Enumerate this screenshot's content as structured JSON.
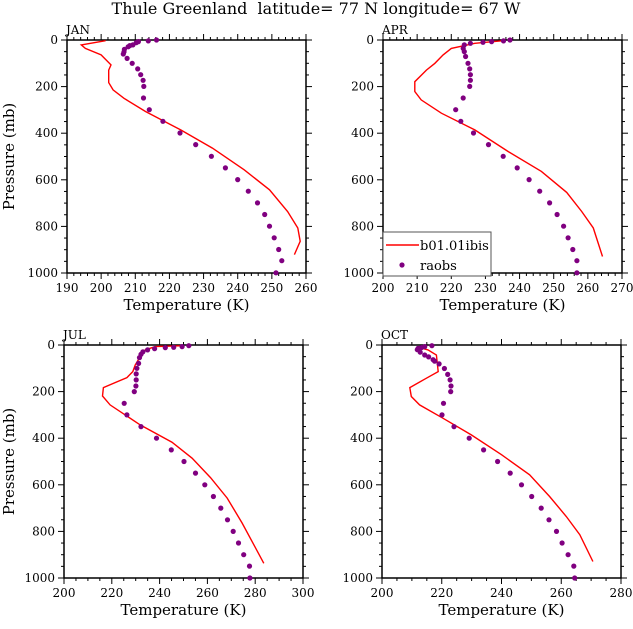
{
  "chart_data": {
    "title": "Thule Greenland  latitude= 77 N longitude= 67 W",
    "legend": {
      "placement": "APR panel, lower-left",
      "entries": [
        {
          "name": "b01.01ibis",
          "style": "line",
          "color": "#ff0000"
        },
        {
          "name": "raobs",
          "style": "dots",
          "color": "#800080"
        }
      ]
    },
    "panels": [
      {
        "type": "line+scatter",
        "label": "JAN",
        "xlabel": "Temperature (K)",
        "ylabel": "Pressure (mb)",
        "xlim": [
          190,
          260
        ],
        "xticks": [
          190,
          200,
          210,
          220,
          230,
          240,
          250,
          260
        ],
        "xminor": 2,
        "ylim": [
          1000,
          0
        ],
        "yticks": [
          0,
          200,
          400,
          600,
          800,
          1000
        ],
        "yminor": 50,
        "model": [
          [
            201.3,
            3
          ],
          [
            194.2,
            21
          ],
          [
            195.4,
            36
          ],
          [
            200.0,
            64
          ],
          [
            202.9,
            107
          ],
          [
            202.2,
            129
          ],
          [
            202.2,
            183
          ],
          [
            203.5,
            214
          ],
          [
            206.7,
            250
          ],
          [
            213.0,
            307
          ],
          [
            223.3,
            386
          ],
          [
            232.6,
            464
          ],
          [
            241.9,
            557
          ],
          [
            249.3,
            643
          ],
          [
            254.6,
            736
          ],
          [
            257.6,
            807
          ],
          [
            258.3,
            864
          ],
          [
            256.6,
            921
          ]
        ],
        "raobs": [
          [
            216.2,
            0
          ],
          [
            213.8,
            4
          ],
          [
            210.9,
            7
          ],
          [
            210.3,
            11
          ],
          [
            209.3,
            21
          ],
          [
            208.4,
            24
          ],
          [
            207.9,
            29
          ],
          [
            206.8,
            40
          ],
          [
            206.7,
            51
          ],
          [
            206.5,
            60
          ],
          [
            207.6,
            79
          ],
          [
            209.1,
            100
          ],
          [
            210.7,
            124
          ],
          [
            211.6,
            149
          ],
          [
            212.3,
            173
          ],
          [
            212.5,
            199
          ],
          [
            212.4,
            249
          ],
          [
            214.1,
            299
          ],
          [
            218.1,
            349
          ],
          [
            223.1,
            399
          ],
          [
            227.7,
            449
          ],
          [
            232.3,
            499
          ],
          [
            236.4,
            549
          ],
          [
            240.0,
            599
          ],
          [
            243.1,
            649
          ],
          [
            245.8,
            699
          ],
          [
            247.9,
            749
          ],
          [
            249.3,
            799
          ],
          [
            250.7,
            849
          ],
          [
            252.0,
            899
          ],
          [
            252.9,
            947
          ],
          [
            251.2,
            999
          ]
        ]
      },
      {
        "type": "line+scatter",
        "label": "APR",
        "xlabel": "Temperature (K)",
        "ylabel": "",
        "xlim": [
          200,
          270
        ],
        "xticks": [
          200,
          210,
          220,
          230,
          240,
          250,
          260,
          270
        ],
        "xminor": 2,
        "ylim": [
          1000,
          0
        ],
        "yticks": [
          0,
          200,
          400,
          600,
          800,
          1000
        ],
        "yminor": 50,
        "model": [
          [
            235.2,
            3
          ],
          [
            226.9,
            14
          ],
          [
            220.0,
            36
          ],
          [
            217.6,
            64
          ],
          [
            215.2,
            100
          ],
          [
            212.7,
            129
          ],
          [
            209.3,
            179
          ],
          [
            209.3,
            221
          ],
          [
            211.2,
            257
          ],
          [
            217.1,
            314
          ],
          [
            226.9,
            386
          ],
          [
            236.7,
            479
          ],
          [
            246.4,
            564
          ],
          [
            253.8,
            654
          ],
          [
            258.2,
            736
          ],
          [
            261.6,
            807
          ],
          [
            263.0,
            871
          ],
          [
            264.3,
            929
          ]
        ],
        "raobs": [
          [
            237.2,
            0
          ],
          [
            235.3,
            4
          ],
          [
            231.8,
            7
          ],
          [
            229.3,
            10
          ],
          [
            225.6,
            14
          ],
          [
            223.8,
            21
          ],
          [
            223.5,
            36
          ],
          [
            223.8,
            50
          ],
          [
            224.2,
            71
          ],
          [
            224.9,
            100
          ],
          [
            225.4,
            124
          ],
          [
            225.6,
            149
          ],
          [
            225.6,
            173
          ],
          [
            225.4,
            199
          ],
          [
            223.5,
            249
          ],
          [
            221.3,
            299
          ],
          [
            222.8,
            349
          ],
          [
            226.5,
            399
          ],
          [
            230.9,
            449
          ],
          [
            235.2,
            499
          ],
          [
            239.3,
            549
          ],
          [
            242.8,
            599
          ],
          [
            245.9,
            649
          ],
          [
            248.8,
            699
          ],
          [
            251.0,
            749
          ],
          [
            252.9,
            799
          ],
          [
            254.2,
            849
          ],
          [
            255.6,
            899
          ],
          [
            256.8,
            947
          ],
          [
            256.8,
            999
          ]
        ]
      },
      {
        "type": "line+scatter",
        "label": "JUL",
        "xlabel": "Temperature (K)",
        "ylabel": "Pressure (mb)",
        "xlim": [
          200,
          300
        ],
        "xticks": [
          200,
          220,
          240,
          260,
          280,
          300
        ],
        "xminor": 5,
        "ylim": [
          1000,
          0
        ],
        "yticks": [
          0,
          200,
          400,
          600,
          800,
          1000
        ],
        "yminor": 50,
        "model": [
          [
            250.1,
            3
          ],
          [
            238.2,
            7
          ],
          [
            234.0,
            21
          ],
          [
            231.9,
            50
          ],
          [
            229.8,
            86
          ],
          [
            228.8,
            114
          ],
          [
            226.3,
            140
          ],
          [
            216.5,
            183
          ],
          [
            216.1,
            219
          ],
          [
            219.3,
            257
          ],
          [
            231.9,
            343
          ],
          [
            245.2,
            417
          ],
          [
            253.6,
            486
          ],
          [
            261.3,
            569
          ],
          [
            268.3,
            657
          ],
          [
            274.5,
            764
          ],
          [
            279.4,
            857
          ],
          [
            283.6,
            937
          ]
        ],
        "raobs": [
          [
            252.2,
            3
          ],
          [
            249.4,
            7
          ],
          [
            245.9,
            10
          ],
          [
            242.4,
            11
          ],
          [
            237.9,
            16
          ],
          [
            235.0,
            21
          ],
          [
            233.0,
            29
          ],
          [
            232.2,
            40
          ],
          [
            231.6,
            54
          ],
          [
            231.2,
            79
          ],
          [
            230.5,
            100
          ],
          [
            230.2,
            124
          ],
          [
            230.2,
            150
          ],
          [
            230.1,
            176
          ],
          [
            229.4,
            200
          ],
          [
            225.2,
            250
          ],
          [
            226.3,
            300
          ],
          [
            232.2,
            350
          ],
          [
            238.7,
            400
          ],
          [
            244.9,
            450
          ],
          [
            250.2,
            500
          ],
          [
            255.0,
            550
          ],
          [
            258.9,
            600
          ],
          [
            262.5,
            650
          ],
          [
            265.6,
            700
          ],
          [
            268.4,
            750
          ],
          [
            270.8,
            800
          ],
          [
            273.0,
            850
          ],
          [
            275.2,
            900
          ],
          [
            277.6,
            949
          ],
          [
            277.8,
            1000
          ]
        ]
      },
      {
        "type": "line+scatter",
        "label": "OCT",
        "xlabel": "Temperature (K)",
        "ylabel": "",
        "xlim": [
          200,
          280
        ],
        "xticks": [
          200,
          220,
          240,
          260,
          280
        ],
        "xminor": 5,
        "ylim": [
          1000,
          0
        ],
        "yticks": [
          0,
          200,
          400,
          600,
          800,
          1000
        ],
        "yminor": 50,
        "model": [
          [
            214.3,
            3
          ],
          [
            212.1,
            9
          ],
          [
            215.4,
            21
          ],
          [
            218.2,
            43
          ],
          [
            218.8,
            114
          ],
          [
            214.8,
            143
          ],
          [
            209.3,
            183
          ],
          [
            209.8,
            221
          ],
          [
            212.6,
            257
          ],
          [
            220.4,
            314
          ],
          [
            229.9,
            386
          ],
          [
            240.0,
            471
          ],
          [
            249.4,
            557
          ],
          [
            256.1,
            650
          ],
          [
            261.7,
            736
          ],
          [
            266.2,
            814
          ],
          [
            270.6,
            929
          ]
        ],
        "raobs": [
          [
            216.7,
            3
          ],
          [
            214.3,
            7
          ],
          [
            213.2,
            11
          ],
          [
            212.1,
            14
          ],
          [
            211.8,
            20
          ],
          [
            212.8,
            31
          ],
          [
            214.3,
            43
          ],
          [
            215.6,
            51
          ],
          [
            217.1,
            63
          ],
          [
            217.6,
            69
          ],
          [
            219.1,
            81
          ],
          [
            220.9,
            101
          ],
          [
            222.0,
            126
          ],
          [
            222.8,
            150
          ],
          [
            223.1,
            176
          ],
          [
            223.0,
            200
          ],
          [
            220.6,
            250
          ],
          [
            220.1,
            300
          ],
          [
            224.1,
            350
          ],
          [
            229.2,
            400
          ],
          [
            234.0,
            450
          ],
          [
            238.7,
            500
          ],
          [
            242.9,
            550
          ],
          [
            246.7,
            600
          ],
          [
            250.1,
            650
          ],
          [
            253.3,
            700
          ],
          [
            255.9,
            750
          ],
          [
            258.4,
            800
          ],
          [
            260.3,
            850
          ],
          [
            262.3,
            900
          ],
          [
            264.2,
            949
          ],
          [
            264.5,
            1000
          ]
        ]
      }
    ]
  }
}
